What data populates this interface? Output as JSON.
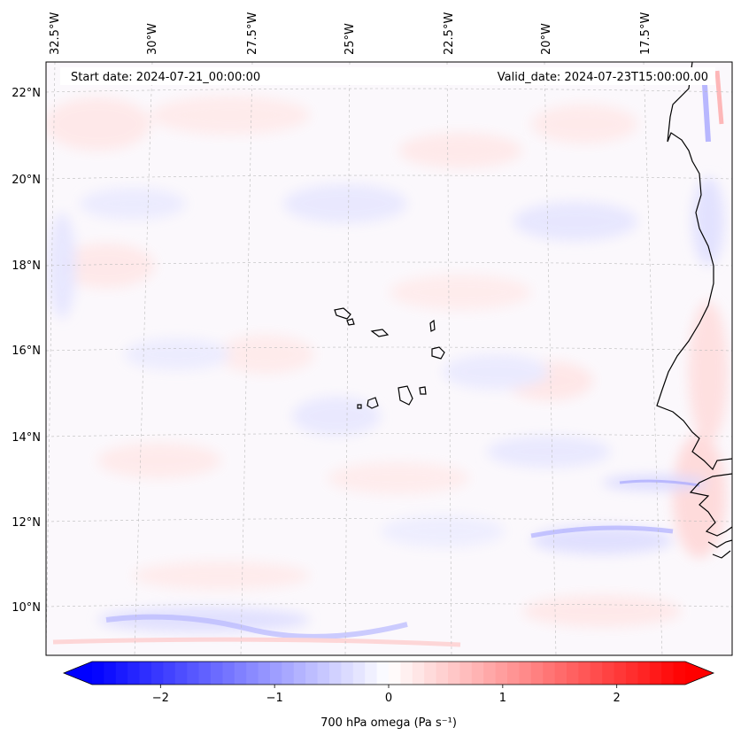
{
  "header": {
    "start_label": "Start date: 2024-07-21_00:00:00",
    "valid_label": "Valid_date: 2024-07-23T15:00:00.00"
  },
  "map": {
    "lon_labels": [
      "32.5°W",
      "30°W",
      "27.5°W",
      "25°W",
      "22.5°W",
      "20°W",
      "17.5°W"
    ],
    "lat_labels": [
      "22°N",
      "20°N",
      "18°N",
      "16°N",
      "14°N",
      "12°N",
      "10°N"
    ],
    "gridlines": true
  },
  "colorbar": {
    "label": "700 hPa omega (Pa s⁻¹)",
    "ticks": [
      {
        "value": -2,
        "label": "−2"
      },
      {
        "value": -1,
        "label": "−1"
      },
      {
        "value": 0,
        "label": "0"
      },
      {
        "value": 1,
        "label": "1"
      },
      {
        "value": 2,
        "label": "2"
      }
    ],
    "vmin": -2.6,
    "vmax": 2.6,
    "colors": {
      "negative": "#0000ff",
      "zero": "#ffffff",
      "positive": "#ff0000"
    }
  }
}
